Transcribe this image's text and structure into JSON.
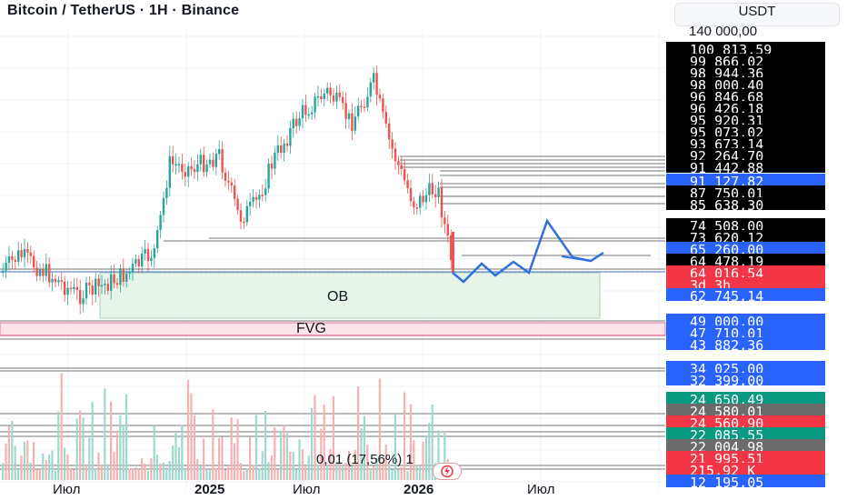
{
  "header": {
    "title": "Bitcoin / TetherUS · 1H · Binance",
    "currency": "USDT",
    "top_axis_label": "140 000,00"
  },
  "price_tags": [
    {
      "text": "100 813,59",
      "color": "#000000"
    },
    {
      "text": "99 866,02",
      "color": "#000000"
    },
    {
      "text": "98 944,36",
      "color": "#000000"
    },
    {
      "text": "98 000,40",
      "color": "#000000"
    },
    {
      "text": "96 846,68",
      "color": "#000000"
    },
    {
      "text": "96 426,18",
      "color": "#000000"
    },
    {
      "text": "95 920,31",
      "color": "#000000"
    },
    {
      "text": "95 073,02",
      "color": "#000000"
    },
    {
      "text": "93 673,14",
      "color": "#000000"
    },
    {
      "text": "92 264,70",
      "color": "#000000"
    },
    {
      "text": "91 442,88",
      "color": "#000000"
    },
    {
      "text": "91 127,82",
      "color": "#2962ff"
    },
    {
      "text": "87 750,01",
      "color": "#000000"
    },
    {
      "text": "85 638,30",
      "color": "#000000"
    },
    {
      "text": "74 508,00",
      "color": "#000000"
    },
    {
      "text": "73 620,12",
      "color": "#000000"
    },
    {
      "text": "65 260,00",
      "color": "#2962ff"
    },
    {
      "text": "64 478,19",
      "color": "#000000"
    },
    {
      "text": "64 016,54",
      "color": "#f23645"
    },
    {
      "text": "3d 3h",
      "color": "#f23645"
    },
    {
      "text": "62 745,14",
      "color": "#2962ff"
    },
    {
      "text": "49 000,00",
      "color": "#2962ff"
    },
    {
      "text": "47 710,01",
      "color": "#2962ff"
    },
    {
      "text": "43 882,36",
      "color": "#2962ff"
    },
    {
      "text": "34 025,00",
      "color": "#2962ff"
    },
    {
      "text": "32 399,00",
      "color": "#2962ff"
    },
    {
      "text": "24 650,49",
      "color": "#089981"
    },
    {
      "text": "24 580,01",
      "color": "#6b6b6b"
    },
    {
      "text": "24 560,90",
      "color": "#f23645"
    },
    {
      "text": "22 085,55",
      "color": "#089981"
    },
    {
      "text": "22 004,98",
      "color": "#6b6b6b"
    },
    {
      "text": "21 995,51",
      "color": "#f23645"
    },
    {
      "text": "215,92 K",
      "color": "#f23645"
    },
    {
      "text": "12 195,05",
      "color": "#2962ff"
    }
  ],
  "zones": {
    "ob_label": "OB",
    "fvg_label": "FVG"
  },
  "volume_label": "0,01 (17,56%)  1",
  "chart_data": {
    "type": "candlestick",
    "x_tick_labels": [
      "Июл",
      "2025",
      "Июл",
      "2026",
      "Июл"
    ],
    "y_range_visible": [
      20000,
      140000
    ],
    "last_price": 64016.54,
    "countdown": "3d 3h",
    "candles_summary": "Weekly-style BTC/USDT candles from ~57000 rising to a peak near 108000, then falling to ~64000",
    "projection_path": "Blue zigzag projection from ~64000 up to ~73000 then back to ~64500"
  },
  "colors": {
    "up": "#26a69a",
    "down": "#ef5350",
    "projection": "#2f6fe0",
    "ob_fill": "#e6f4ea",
    "fvg_fill": "#fde4ea"
  }
}
